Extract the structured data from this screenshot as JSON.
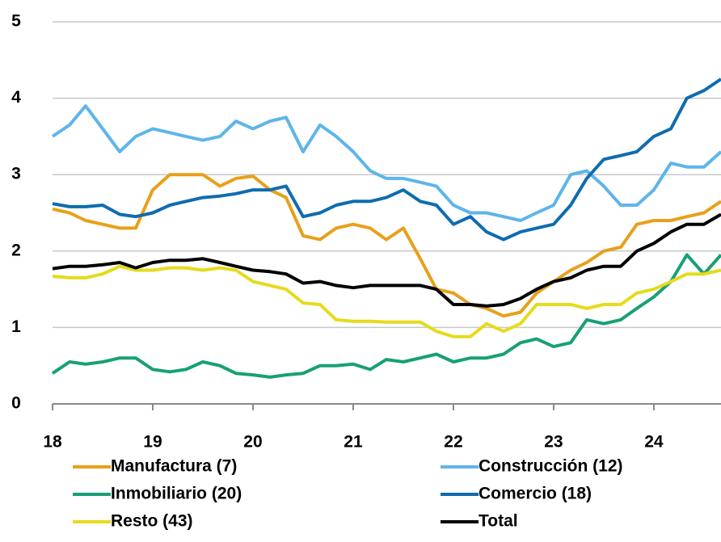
{
  "chart_data": {
    "type": "line",
    "x": [
      18,
      18.17,
      18.33,
      18.5,
      18.67,
      18.83,
      19,
      19.17,
      19.33,
      19.5,
      19.67,
      19.83,
      20,
      20.17,
      20.33,
      20.5,
      20.67,
      20.83,
      21,
      21.17,
      21.33,
      21.5,
      21.67,
      21.83,
      22,
      22.17,
      22.33,
      22.5,
      22.67,
      22.83,
      23,
      23.17,
      23.33,
      23.5,
      23.67,
      23.83,
      24,
      24.17,
      24.33,
      24.5,
      24.67
    ],
    "series": [
      {
        "name": "Manufactura (7)",
        "color": "#e8a01a",
        "values": [
          2.55,
          2.5,
          2.4,
          2.35,
          2.3,
          2.3,
          2.8,
          3.0,
          3.0,
          3.0,
          2.85,
          2.95,
          2.98,
          2.8,
          2.7,
          2.2,
          2.15,
          2.3,
          2.35,
          2.3,
          2.15,
          2.3,
          1.9,
          1.5,
          1.45,
          1.3,
          1.25,
          1.15,
          1.2,
          1.45,
          1.6,
          1.75,
          1.85,
          2.0,
          2.05,
          2.35,
          2.4,
          2.4,
          2.45,
          2.5,
          2.65
        ]
      },
      {
        "name": "Construcción (12)",
        "color": "#5eb5ea",
        "values": [
          3.5,
          3.65,
          3.9,
          3.6,
          3.3,
          3.5,
          3.6,
          3.55,
          3.5,
          3.45,
          3.5,
          3.7,
          3.6,
          3.7,
          3.75,
          3.3,
          3.65,
          3.5,
          3.3,
          3.05,
          2.95,
          2.95,
          2.9,
          2.85,
          2.6,
          2.5,
          2.5,
          2.45,
          2.4,
          2.5,
          2.6,
          3.0,
          3.05,
          2.85,
          2.6,
          2.6,
          2.8,
          3.15,
          3.1,
          3.1,
          3.3
        ]
      },
      {
        "name": "Inmobiliario (20)",
        "color": "#17a077",
        "values": [
          0.4,
          0.55,
          0.52,
          0.55,
          0.6,
          0.6,
          0.45,
          0.42,
          0.45,
          0.55,
          0.5,
          0.4,
          0.38,
          0.35,
          0.38,
          0.4,
          0.5,
          0.5,
          0.52,
          0.45,
          0.58,
          0.55,
          0.6,
          0.65,
          0.55,
          0.6,
          0.6,
          0.65,
          0.8,
          0.85,
          0.75,
          0.8,
          1.1,
          1.05,
          1.1,
          1.25,
          1.4,
          1.6,
          1.95,
          1.7,
          1.95
        ]
      },
      {
        "name": "Comercio (18)",
        "color": "#0f6caf",
        "values": [
          2.62,
          2.58,
          2.58,
          2.6,
          2.48,
          2.45,
          2.5,
          2.6,
          2.65,
          2.7,
          2.72,
          2.75,
          2.8,
          2.8,
          2.85,
          2.45,
          2.5,
          2.6,
          2.65,
          2.65,
          2.7,
          2.8,
          2.65,
          2.6,
          2.35,
          2.45,
          2.25,
          2.15,
          2.25,
          2.3,
          2.35,
          2.6,
          2.95,
          3.2,
          3.25,
          3.3,
          3.5,
          3.6,
          4.0,
          4.1,
          4.25
        ]
      },
      {
        "name": "Resto (43)",
        "color": "#e6db1c",
        "values": [
          1.67,
          1.65,
          1.65,
          1.7,
          1.8,
          1.75,
          1.75,
          1.78,
          1.78,
          1.75,
          1.78,
          1.75,
          1.6,
          1.55,
          1.5,
          1.32,
          1.3,
          1.1,
          1.08,
          1.08,
          1.07,
          1.07,
          1.07,
          0.95,
          0.88,
          0.88,
          1.05,
          0.95,
          1.05,
          1.3,
          1.3,
          1.3,
          1.25,
          1.3,
          1.3,
          1.45,
          1.5,
          1.6,
          1.7,
          1.7,
          1.75
        ]
      },
      {
        "name": "Total",
        "color": "#000000",
        "values": [
          1.77,
          1.8,
          1.8,
          1.82,
          1.85,
          1.78,
          1.85,
          1.88,
          1.88,
          1.9,
          1.85,
          1.8,
          1.75,
          1.73,
          1.7,
          1.58,
          1.6,
          1.55,
          1.52,
          1.55,
          1.55,
          1.55,
          1.55,
          1.5,
          1.3,
          1.3,
          1.28,
          1.3,
          1.38,
          1.5,
          1.6,
          1.65,
          1.75,
          1.8,
          1.8,
          2.0,
          2.1,
          2.25,
          2.35,
          2.35,
          2.48
        ]
      }
    ],
    "xlim": [
      18,
      24.67
    ],
    "xticks": [
      18,
      19,
      20,
      21,
      22,
      23,
      24
    ],
    "ylim": [
      0,
      5
    ],
    "yticks": [
      0,
      1,
      2,
      3,
      4,
      5
    ],
    "grid": true,
    "legend": "bottom"
  }
}
